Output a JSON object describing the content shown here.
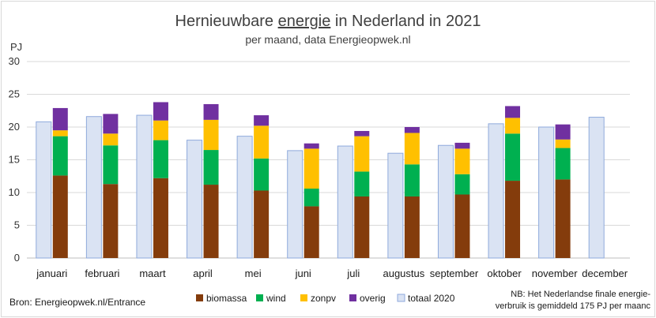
{
  "chart_data": {
    "type": "bar",
    "title_prefix": "Hernieuwbare ",
    "title_underlined": "energie",
    "title_suffix": " in Nederland in 2021",
    "subtitle": "per maand, data Energieopwek.nl",
    "ylabel": "PJ",
    "ylim": [
      0,
      30
    ],
    "yticks": [
      0,
      5,
      10,
      15,
      20,
      25,
      30
    ],
    "grid": true,
    "legend_position": "bottom",
    "categories": [
      "januari",
      "februari",
      "maart",
      "april",
      "mei",
      "juni",
      "juli",
      "augustus",
      "september",
      "oktober",
      "november",
      "december"
    ],
    "stack_series": [
      {
        "name": "biomassa",
        "color": "#843c0c",
        "values": [
          12.6,
          11.3,
          12.2,
          11.2,
          10.3,
          7.9,
          9.4,
          9.4,
          9.7,
          11.8,
          12.0,
          null
        ]
      },
      {
        "name": "wind",
        "color": "#00b050",
        "values": [
          6.0,
          5.9,
          5.8,
          5.3,
          4.9,
          2.7,
          3.8,
          4.9,
          3.1,
          7.2,
          4.8,
          null
        ]
      },
      {
        "name": "zonpv",
        "color": "#ffc000",
        "values": [
          0.9,
          1.8,
          3.0,
          4.6,
          5.0,
          6.1,
          5.4,
          4.8,
          3.9,
          2.4,
          1.3,
          null
        ]
      },
      {
        "name": "overig",
        "color": "#7030a0",
        "values": [
          3.4,
          3.0,
          2.8,
          2.4,
          1.6,
          0.8,
          0.8,
          0.9,
          0.9,
          1.8,
          2.3,
          null
        ]
      }
    ],
    "comparison_series": {
      "name": "totaal 2020",
      "color": "#dae3f3",
      "border": "#8faadc",
      "values": [
        20.8,
        21.6,
        21.8,
        18.0,
        18.6,
        16.4,
        17.1,
        16.0,
        17.2,
        20.5,
        20.0,
        21.5
      ]
    },
    "source_text": "Bron: Energieopwek.nl/Entrance",
    "note_lines": [
      "NB: Het Nederlandse finale energie-",
      "verbruik is gemiddeld 175 PJ per maanc"
    ]
  }
}
